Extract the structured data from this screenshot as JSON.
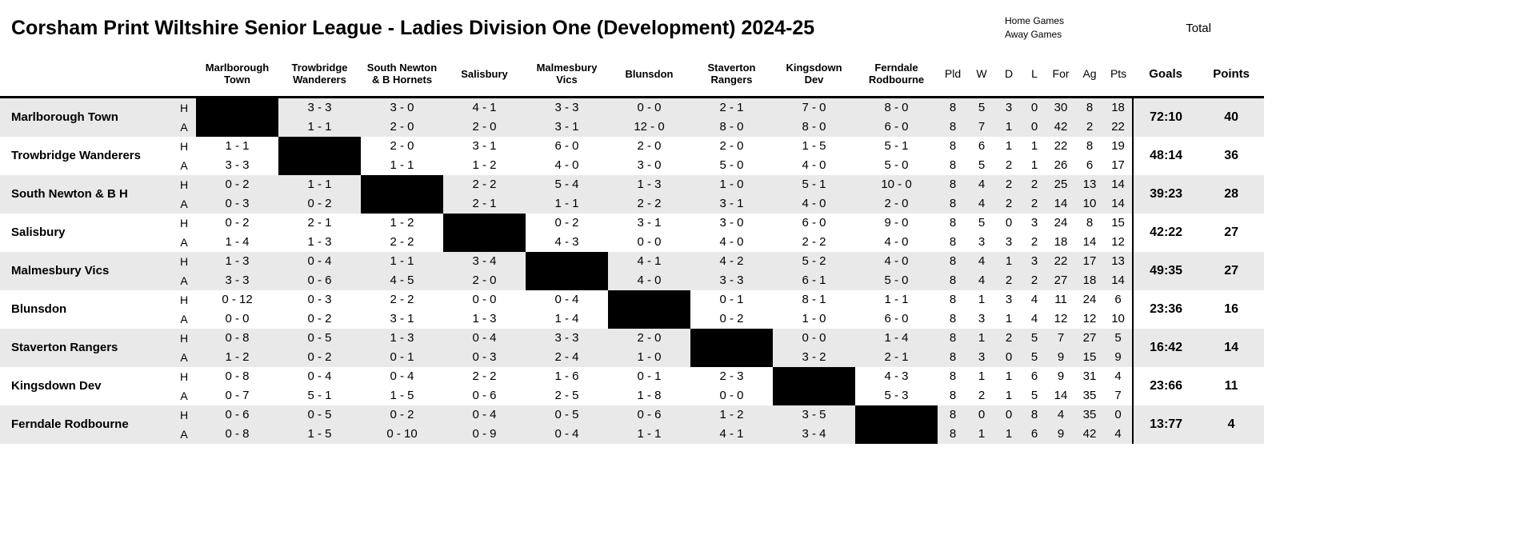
{
  "page": {
    "legend_home": "Home Games",
    "legend_away": "Away Games",
    "total_label": "Total"
  },
  "colors": {
    "band_gray": "#e9e9e9",
    "self_cell": "#000000",
    "rule": "#000000"
  },
  "chart_data": {
    "type": "table",
    "title": "Corsham Print Wiltshire Senior League - Ladies Division One (Development) 2024-25",
    "opponents": [
      "Marlborough Town",
      "Trowbridge Wanderers",
      "South Newton & B Hornets",
      "Salisbury",
      "Malmesbury Vics",
      "Blunsdon",
      "Staverton Rangers",
      "Kingsdown Dev",
      "Ferndale Rodbourne"
    ],
    "stat_headers": [
      "Pld",
      "W",
      "D",
      "L",
      "For",
      "Ag",
      "Pts"
    ],
    "goals_header": "Goals",
    "points_header": "Points",
    "row_labels": {
      "home": "H",
      "away": "A"
    },
    "teams": [
      {
        "name": "Marlborough Town",
        "home": {
          "results": [
            null,
            "3 - 3",
            "3 - 0",
            "4 - 1",
            "3 - 3",
            "0 - 0",
            "2 - 1",
            "7 - 0",
            "8 - 0"
          ],
          "stats": [
            8,
            5,
            3,
            0,
            30,
            8,
            18
          ]
        },
        "away": {
          "results": [
            null,
            "1 - 1",
            "2 - 0",
            "2 - 0",
            "3 - 1",
            "12 - 0",
            "8 - 0",
            "8 - 0",
            "6 - 0"
          ],
          "stats": [
            8,
            7,
            1,
            0,
            42,
            2,
            22
          ]
        },
        "goals": "72:10",
        "points": "40"
      },
      {
        "name": "Trowbridge Wanderers",
        "home": {
          "results": [
            "1 - 1",
            null,
            "2 - 0",
            "3 - 1",
            "6 - 0",
            "2 - 0",
            "2 - 0",
            "1 - 5",
            "5 - 1"
          ],
          "stats": [
            8,
            6,
            1,
            1,
            22,
            8,
            19
          ]
        },
        "away": {
          "results": [
            "3 - 3",
            null,
            "1 - 1",
            "1 - 2",
            "4 - 0",
            "3 - 0",
            "5 - 0",
            "4 - 0",
            "5 - 0"
          ],
          "stats": [
            8,
            5,
            2,
            1,
            26,
            6,
            17
          ]
        },
        "goals": "48:14",
        "points": "36"
      },
      {
        "name": "South Newton & B H",
        "home": {
          "results": [
            "0 - 2",
            "1 - 1",
            null,
            "2 - 2",
            "5 - 4",
            "1 - 3",
            "1 - 0",
            "5 - 1",
            "10 - 0"
          ],
          "stats": [
            8,
            4,
            2,
            2,
            25,
            13,
            14
          ]
        },
        "away": {
          "results": [
            "0 - 3",
            "0 - 2",
            null,
            "2 - 1",
            "1 - 1",
            "2 - 2",
            "3 - 1",
            "4 - 0",
            "2 - 0"
          ],
          "stats": [
            8,
            4,
            2,
            2,
            14,
            10,
            14
          ]
        },
        "goals": "39:23",
        "points": "28"
      },
      {
        "name": "Salisbury",
        "home": {
          "results": [
            "0 - 2",
            "2 - 1",
            "1 - 2",
            null,
            "0 - 2",
            "3 - 1",
            "3 - 0",
            "6 - 0",
            "9 - 0"
          ],
          "stats": [
            8,
            5,
            0,
            3,
            24,
            8,
            15
          ]
        },
        "away": {
          "results": [
            "1 - 4",
            "1 - 3",
            "2 - 2",
            null,
            "4 - 3",
            "0 - 0",
            "4 - 0",
            "2 - 2",
            "4 - 0"
          ],
          "stats": [
            8,
            3,
            3,
            2,
            18,
            14,
            12
          ]
        },
        "goals": "42:22",
        "points": "27"
      },
      {
        "name": "Malmesbury Vics",
        "home": {
          "results": [
            "1 - 3",
            "0 - 4",
            "1 - 1",
            "3 - 4",
            null,
            "4 - 1",
            "4 - 2",
            "5 - 2",
            "4 - 0"
          ],
          "stats": [
            8,
            4,
            1,
            3,
            22,
            17,
            13
          ]
        },
        "away": {
          "results": [
            "3 - 3",
            "0 - 6",
            "4 - 5",
            "2 - 0",
            null,
            "4 - 0",
            "3 - 3",
            "6 - 1",
            "5 - 0"
          ],
          "stats": [
            8,
            4,
            2,
            2,
            27,
            18,
            14
          ]
        },
        "goals": "49:35",
        "points": "27"
      },
      {
        "name": "Blunsdon",
        "home": {
          "results": [
            "0 - 12",
            "0 - 3",
            "2 - 2",
            "0 - 0",
            "0 - 4",
            null,
            "0 - 1",
            "8 - 1",
            "1 - 1"
          ],
          "stats": [
            8,
            1,
            3,
            4,
            11,
            24,
            6
          ]
        },
        "away": {
          "results": [
            "0 - 0",
            "0 - 2",
            "3 - 1",
            "1 - 3",
            "1 - 4",
            null,
            "0 - 2",
            "1 - 0",
            "6 - 0"
          ],
          "stats": [
            8,
            3,
            1,
            4,
            12,
            12,
            10
          ]
        },
        "goals": "23:36",
        "points": "16"
      },
      {
        "name": "Staverton Rangers",
        "home": {
          "results": [
            "0 - 8",
            "0 - 5",
            "1 - 3",
            "0 - 4",
            "3 - 3",
            "2 - 0",
            null,
            "0 - 0",
            "1 - 4"
          ],
          "stats": [
            8,
            1,
            2,
            5,
            7,
            27,
            5
          ]
        },
        "away": {
          "results": [
            "1 - 2",
            "0 - 2",
            "0 - 1",
            "0 - 3",
            "2 - 4",
            "1 - 0",
            null,
            "3 - 2",
            "2 - 1"
          ],
          "stats": [
            8,
            3,
            0,
            5,
            9,
            15,
            9
          ]
        },
        "goals": "16:42",
        "points": "14"
      },
      {
        "name": "Kingsdown Dev",
        "home": {
          "results": [
            "0 - 8",
            "0 - 4",
            "0 - 4",
            "2 - 2",
            "1 - 6",
            "0 - 1",
            "2 - 3",
            null,
            "4 - 3"
          ],
          "stats": [
            8,
            1,
            1,
            6,
            9,
            31,
            4
          ]
        },
        "away": {
          "results": [
            "0 - 7",
            "5 - 1",
            "1 - 5",
            "0 - 6",
            "2 - 5",
            "1 - 8",
            "0 - 0",
            null,
            "5 - 3"
          ],
          "stats": [
            8,
            2,
            1,
            5,
            14,
            35,
            7
          ]
        },
        "goals": "23:66",
        "points": "11"
      },
      {
        "name": "Ferndale Rodbourne",
        "home": {
          "results": [
            "0 - 6",
            "0 - 5",
            "0 - 2",
            "0 - 4",
            "0 - 5",
            "0 - 6",
            "1 - 2",
            "3 - 5",
            null
          ],
          "stats": [
            8,
            0,
            0,
            8,
            4,
            35,
            0
          ]
        },
        "away": {
          "results": [
            "0 - 8",
            "1 - 5",
            "0 - 10",
            "0 - 9",
            "0 - 4",
            "1 - 1",
            "4 - 1",
            "3 - 4",
            null
          ],
          "stats": [
            8,
            1,
            1,
            6,
            9,
            42,
            4
          ]
        },
        "goals": "13:77",
        "points": "4"
      }
    ]
  }
}
